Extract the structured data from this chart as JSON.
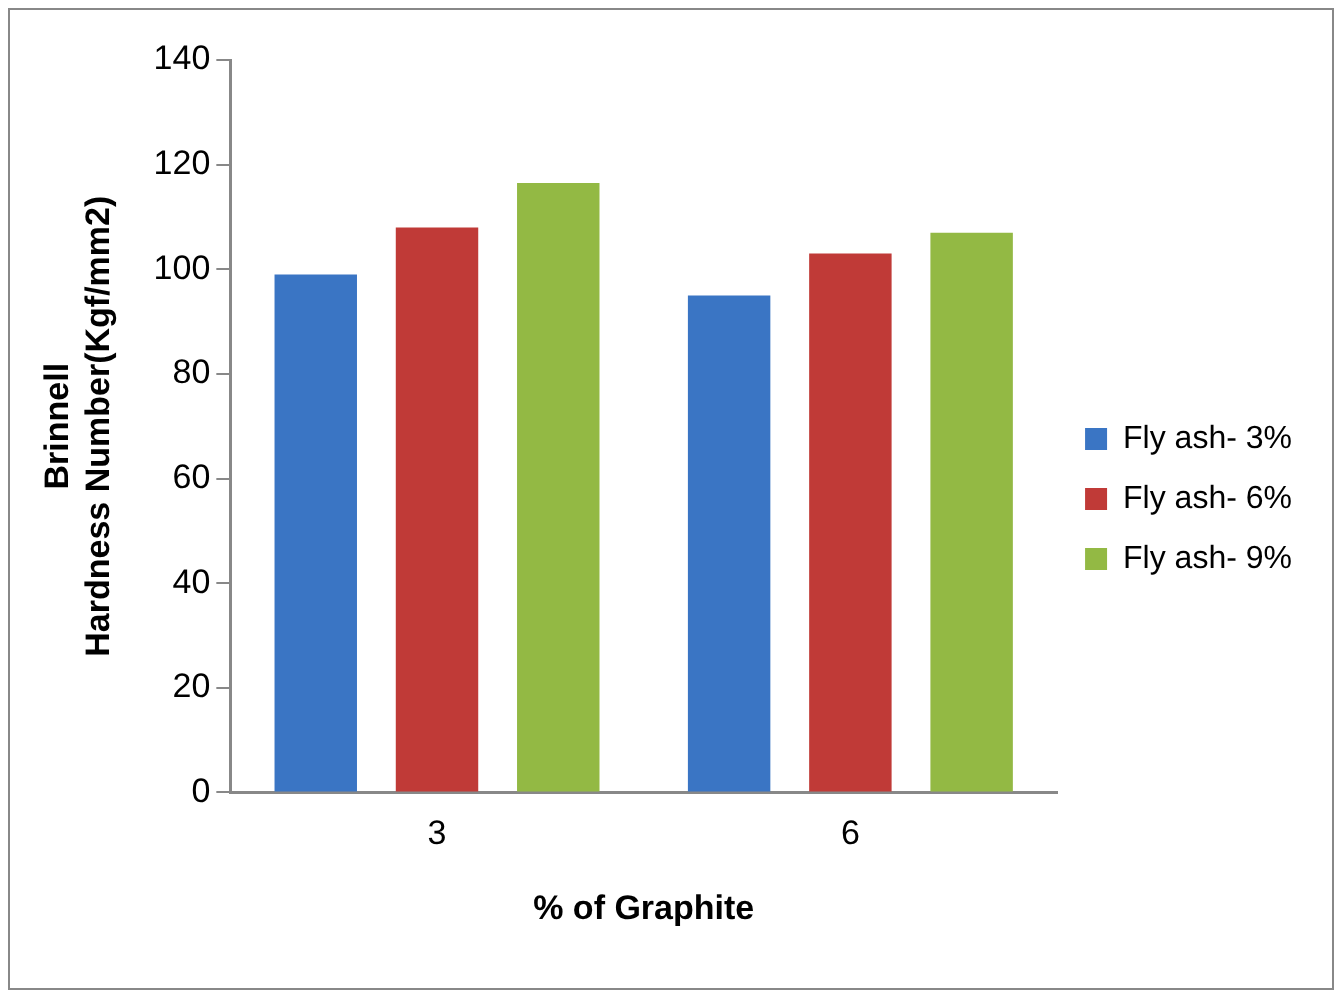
{
  "chart_data": {
    "type": "bar",
    "xlabel": "% of Graphite",
    "ylabel": "Brinnell Hardness Number(Kgf/mm2)",
    "categories": [
      "3",
      "6"
    ],
    "series": [
      {
        "name": "Fly ash- 3%",
        "color": "#3a75c4",
        "values": [
          99,
          95
        ]
      },
      {
        "name": "Fly ash- 6%",
        "color": "#c03a37",
        "values": [
          108,
          103
        ]
      },
      {
        "name": "Fly ash- 9%",
        "color": "#93b944",
        "values": [
          116.5,
          107
        ]
      }
    ],
    "ylim": [
      0,
      140
    ],
    "yticks": [
      0,
      20,
      40,
      60,
      80,
      100,
      120,
      140
    ],
    "grid": false,
    "legend": "right"
  }
}
